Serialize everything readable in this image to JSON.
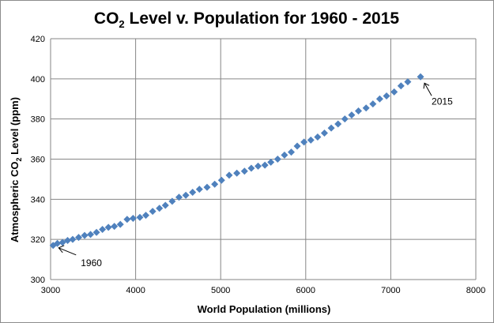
{
  "chart_data": {
    "type": "scatter",
    "title": {
      "main": "CO",
      "sub": "2",
      "rest": " Level v. Population for 1960 - 2015"
    },
    "xlabel": "World Population  (millions)",
    "ylabel": {
      "main": "Atmospheric CO",
      "sub": "2",
      "rest": " Level (ppm)"
    },
    "xlim": [
      3000,
      8000
    ],
    "ylim": [
      300,
      420
    ],
    "x_ticks": [
      3000,
      4000,
      5000,
      6000,
      7000,
      8000
    ],
    "y_ticks": [
      300,
      320,
      340,
      360,
      380,
      400,
      420
    ],
    "grid": true,
    "marker": "diamond",
    "series": [
      {
        "color": "#4f81bd",
        "x": [
          3030,
          3080,
          3140,
          3200,
          3260,
          3330,
          3400,
          3470,
          3540,
          3610,
          3680,
          3750,
          3820,
          3900,
          3970,
          4050,
          4120,
          4200,
          4280,
          4350,
          4430,
          4510,
          4590,
          4670,
          4750,
          4840,
          4930,
          5010,
          5100,
          5190,
          5280,
          5360,
          5440,
          5520,
          5590,
          5670,
          5750,
          5830,
          5900,
          5980,
          6060,
          6140,
          6220,
          6300,
          6380,
          6460,
          6540,
          6620,
          6710,
          6790,
          6870,
          6950,
          7040,
          7120,
          7200,
          7350
        ],
        "y": [
          317,
          318,
          318.5,
          319.5,
          320,
          321,
          322,
          322.5,
          323.5,
          325,
          326,
          326.5,
          327.5,
          330,
          330.5,
          331,
          332,
          334,
          335.5,
          337,
          339,
          341,
          342,
          343.5,
          345,
          346,
          347.5,
          349.5,
          352,
          353,
          354,
          355.5,
          356.5,
          357,
          358.5,
          360,
          362,
          363.5,
          366.5,
          368.5,
          369.5,
          371,
          373,
          375.5,
          377.5,
          380,
          382,
          384,
          385.5,
          387.5,
          390,
          391.5,
          393.5,
          396.5,
          398.5,
          401
        ]
      }
    ],
    "annotations": [
      {
        "text": "1960",
        "x": 3030,
        "y": 317
      },
      {
        "text": "2015",
        "x": 7350,
        "y": 401
      }
    ]
  }
}
